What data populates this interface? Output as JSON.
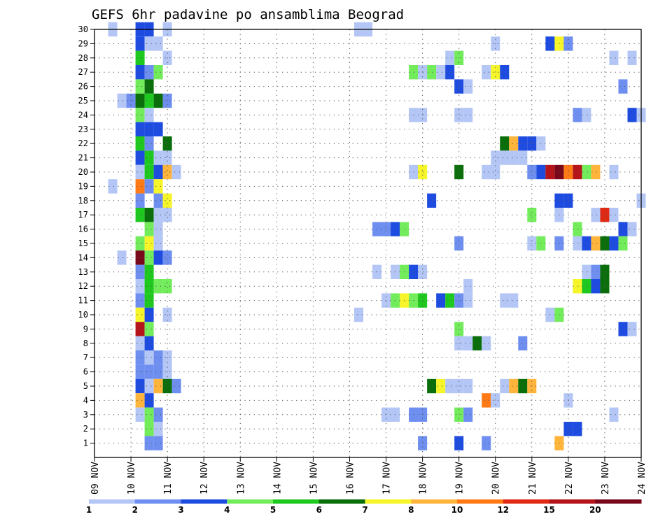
{
  "chart_data": {
    "type": "heatmap",
    "title": "GEFS 6hr padavine po ansamblima Beograd",
    "xlabel": "",
    "ylabel": "",
    "x_ticks": [
      "09 NOV",
      "10 NOV",
      "11 NOV",
      "12 NOV",
      "13 NOV",
      "14 NOV",
      "15 NOV",
      "16 NOV",
      "17 NOV",
      "18 NOV",
      "19 NOV",
      "20 NOV",
      "21 NOV",
      "22 NOV",
      "23 NOV",
      "24 NOV"
    ],
    "y_ticks": [
      "1",
      "2",
      "3",
      "4",
      "5",
      "6",
      "7",
      "8",
      "9",
      "10",
      "11",
      "12",
      "13",
      "14",
      "15",
      "16",
      "17",
      "18",
      "19",
      "20",
      "21",
      "22",
      "23",
      "24",
      "25",
      "26",
      "27",
      "28",
      "29",
      "30"
    ],
    "time_range_days": [
      0,
      15
    ],
    "member_range": [
      0,
      30
    ],
    "colorbar": {
      "bins": [
        1,
        2,
        3,
        4,
        5,
        6,
        7,
        8,
        10,
        12,
        15,
        20
      ],
      "labels": [
        "1",
        "2",
        "3",
        "4",
        "5",
        "6",
        "7",
        "8",
        "10",
        "12",
        "15",
        "20"
      ],
      "colors": [
        "#b3c6f5",
        "#6f8ff0",
        "#1f4ce0",
        "#73ec5c",
        "#1fc81f",
        "#0a6e0a",
        "#f5f52a",
        "#ffb53c",
        "#ff7a14",
        "#e02a14",
        "#b4141a",
        "#78081a"
      ]
    },
    "cells": [
      [
        30,
        10.25,
        3
      ],
      [
        30,
        10.5,
        3
      ],
      [
        30,
        9.5,
        1
      ],
      [
        30,
        11.0,
        1
      ],
      [
        30,
        16.25,
        1
      ],
      [
        30,
        16.5,
        1
      ],
      [
        29,
        10.25,
        3
      ],
      [
        29,
        10.5,
        1
      ],
      [
        29,
        10.75,
        1
      ],
      [
        29,
        20.0,
        1
      ],
      [
        29,
        21.5,
        3
      ],
      [
        29,
        21.75,
        7
      ],
      [
        29,
        22.0,
        2
      ],
      [
        28,
        10.25,
        5
      ],
      [
        28,
        11.0,
        1
      ],
      [
        28,
        18.75,
        1
      ],
      [
        28,
        19.0,
        4
      ],
      [
        28,
        23.25,
        1
      ],
      [
        28,
        23.75,
        1
      ],
      [
        27,
        10.25,
        3
      ],
      [
        27,
        10.5,
        2
      ],
      [
        27,
        10.75,
        4
      ],
      [
        27,
        17.75,
        4
      ],
      [
        27,
        18.0,
        1
      ],
      [
        27,
        18.25,
        4
      ],
      [
        27,
        18.5,
        1
      ],
      [
        27,
        18.75,
        3
      ],
      [
        27,
        19.75,
        1
      ],
      [
        27,
        20.0,
        7
      ],
      [
        27,
        20.25,
        3
      ],
      [
        26,
        10.25,
        4
      ],
      [
        26,
        10.5,
        6
      ],
      [
        26,
        19.0,
        3
      ],
      [
        26,
        19.25,
        1
      ],
      [
        26,
        23.5,
        2
      ],
      [
        25,
        9.75,
        1
      ],
      [
        25,
        10.0,
        2
      ],
      [
        25,
        10.25,
        6
      ],
      [
        25,
        10.5,
        5
      ],
      [
        25,
        10.75,
        6
      ],
      [
        25,
        11.0,
        2
      ],
      [
        24,
        10.25,
        4
      ],
      [
        24,
        10.5,
        1
      ],
      [
        24,
        17.75,
        1
      ],
      [
        24,
        18.0,
        1
      ],
      [
        24,
        19.0,
        1
      ],
      [
        24,
        19.25,
        1
      ],
      [
        24,
        22.25,
        2
      ],
      [
        24,
        22.5,
        1
      ],
      [
        24,
        23.75,
        3
      ],
      [
        24,
        24.0,
        1
      ],
      [
        23,
        10.25,
        3
      ],
      [
        23,
        10.5,
        3
      ],
      [
        23,
        10.75,
        3
      ],
      [
        22,
        10.25,
        5
      ],
      [
        22,
        10.5,
        2
      ],
      [
        22,
        11.0,
        6
      ],
      [
        22,
        20.25,
        6
      ],
      [
        22,
        20.5,
        8
      ],
      [
        22,
        20.75,
        3
      ],
      [
        22,
        21.0,
        3
      ],
      [
        22,
        21.25,
        1
      ],
      [
        21,
        10.25,
        3
      ],
      [
        21,
        10.5,
        5
      ],
      [
        21,
        10.75,
        1
      ],
      [
        21,
        11.0,
        1
      ],
      [
        21,
        20.0,
        1
      ],
      [
        21,
        20.25,
        1
      ],
      [
        21,
        20.5,
        1
      ],
      [
        21,
        20.75,
        1
      ],
      [
        20,
        10.25,
        1
      ],
      [
        20,
        10.5,
        5
      ],
      [
        20,
        10.75,
        3
      ],
      [
        20,
        11.0,
        8
      ],
      [
        20,
        11.25,
        1
      ],
      [
        20,
        17.75,
        1
      ],
      [
        20,
        18.0,
        7
      ],
      [
        20,
        19.0,
        6
      ],
      [
        20,
        19.75,
        1
      ],
      [
        20,
        20.0,
        1
      ],
      [
        20,
        21.0,
        2
      ],
      [
        20,
        21.25,
        3
      ],
      [
        20,
        21.5,
        11
      ],
      [
        20,
        21.75,
        12
      ],
      [
        20,
        22.0,
        9
      ],
      [
        20,
        22.25,
        11
      ],
      [
        20,
        22.5,
        4
      ],
      [
        20,
        22.75,
        8
      ],
      [
        20,
        23.25,
        1
      ],
      [
        19,
        9.5,
        1
      ],
      [
        19,
        10.25,
        9
      ],
      [
        19,
        10.5,
        2
      ],
      [
        19,
        10.75,
        7
      ],
      [
        18,
        10.25,
        2
      ],
      [
        18,
        10.75,
        2
      ],
      [
        18,
        11.0,
        7
      ],
      [
        18,
        18.25,
        3
      ],
      [
        18,
        21.75,
        3
      ],
      [
        18,
        22.0,
        3
      ],
      [
        18,
        24.0,
        1
      ],
      [
        17,
        10.25,
        5
      ],
      [
        17,
        10.5,
        6
      ],
      [
        17,
        10.75,
        1
      ],
      [
        17,
        11.0,
        1
      ],
      [
        17,
        21.0,
        4
      ],
      [
        17,
        21.75,
        1
      ],
      [
        17,
        22.75,
        1
      ],
      [
        17,
        23.0,
        10
      ],
      [
        17,
        23.25,
        1
      ],
      [
        16,
        10.5,
        4
      ],
      [
        16,
        10.75,
        1
      ],
      [
        16,
        16.75,
        2
      ],
      [
        16,
        17.0,
        2
      ],
      [
        16,
        17.25,
        3
      ],
      [
        16,
        17.5,
        4
      ],
      [
        16,
        22.25,
        4
      ],
      [
        16,
        23.5,
        3
      ],
      [
        16,
        23.75,
        1
      ],
      [
        15,
        10.25,
        4
      ],
      [
        15,
        10.5,
        7
      ],
      [
        15,
        10.75,
        1
      ],
      [
        15,
        19.0,
        2
      ],
      [
        15,
        21.0,
        1
      ],
      [
        15,
        21.25,
        4
      ],
      [
        15,
        21.75,
        2
      ],
      [
        15,
        22.25,
        1
      ],
      [
        15,
        22.5,
        3
      ],
      [
        15,
        22.75,
        8
      ],
      [
        15,
        23.0,
        6
      ],
      [
        15,
        23.25,
        3
      ],
      [
        15,
        23.5,
        4
      ],
      [
        14,
        9.75,
        1
      ],
      [
        14,
        10.25,
        12
      ],
      [
        14,
        10.5,
        4
      ],
      [
        14,
        10.75,
        3
      ],
      [
        14,
        11.0,
        2
      ],
      [
        13,
        10.25,
        2
      ],
      [
        13,
        10.5,
        5
      ],
      [
        13,
        16.75,
        1
      ],
      [
        13,
        17.25,
        1
      ],
      [
        13,
        17.5,
        4
      ],
      [
        13,
        17.75,
        3
      ],
      [
        13,
        18.0,
        1
      ],
      [
        13,
        22.5,
        1
      ],
      [
        13,
        22.75,
        2
      ],
      [
        13,
        23.0,
        6
      ],
      [
        12,
        10.25,
        1
      ],
      [
        12,
        10.5,
        5
      ],
      [
        12,
        10.75,
        4
      ],
      [
        12,
        11.0,
        4
      ],
      [
        12,
        19.25,
        1
      ],
      [
        12,
        22.25,
        7
      ],
      [
        12,
        22.5,
        5
      ],
      [
        12,
        22.75,
        3
      ],
      [
        12,
        23.0,
        6
      ],
      [
        11,
        10.25,
        2
      ],
      [
        11,
        10.5,
        5
      ],
      [
        11,
        17.0,
        1
      ],
      [
        11,
        17.25,
        4
      ],
      [
        11,
        17.5,
        7
      ],
      [
        11,
        17.75,
        4
      ],
      [
        11,
        18.0,
        5
      ],
      [
        11,
        18.5,
        3
      ],
      [
        11,
        18.75,
        5
      ],
      [
        11,
        19.0,
        2
      ],
      [
        11,
        19.25,
        1
      ],
      [
        11,
        20.25,
        1
      ],
      [
        11,
        20.5,
        1
      ],
      [
        10,
        10.25,
        7
      ],
      [
        10,
        10.5,
        3
      ],
      [
        10,
        11.0,
        1
      ],
      [
        10,
        16.25,
        1
      ],
      [
        10,
        21.5,
        1
      ],
      [
        10,
        21.75,
        4
      ],
      [
        9,
        10.25,
        11
      ],
      [
        9,
        10.5,
        4
      ],
      [
        9,
        19.0,
        4
      ],
      [
        9,
        23.5,
        3
      ],
      [
        9,
        23.75,
        1
      ],
      [
        8,
        10.25,
        1
      ],
      [
        8,
        10.5,
        3
      ],
      [
        8,
        19.0,
        1
      ],
      [
        8,
        19.25,
        1
      ],
      [
        8,
        19.5,
        6
      ],
      [
        8,
        19.75,
        1
      ],
      [
        8,
        20.75,
        2
      ],
      [
        7,
        10.25,
        2
      ],
      [
        7,
        10.5,
        1
      ],
      [
        7,
        10.75,
        2
      ],
      [
        7,
        11.0,
        1
      ],
      [
        6,
        10.25,
        2
      ],
      [
        6,
        10.5,
        2
      ],
      [
        6,
        10.75,
        2
      ],
      [
        6,
        11.0,
        1
      ],
      [
        5,
        10.25,
        3
      ],
      [
        5,
        10.5,
        1
      ],
      [
        5,
        10.75,
        8
      ],
      [
        5,
        11.0,
        6
      ],
      [
        5,
        11.25,
        2
      ],
      [
        5,
        18.25,
        6
      ],
      [
        5,
        18.5,
        7
      ],
      [
        5,
        18.75,
        1
      ],
      [
        5,
        19.0,
        1
      ],
      [
        5,
        19.25,
        1
      ],
      [
        5,
        20.25,
        1
      ],
      [
        5,
        20.5,
        8
      ],
      [
        5,
        20.75,
        6
      ],
      [
        5,
        21.0,
        8
      ],
      [
        4,
        10.25,
        8
      ],
      [
        4,
        10.5,
        3
      ],
      [
        4,
        19.75,
        9
      ],
      [
        4,
        20.0,
        1
      ],
      [
        4,
        22.0,
        1
      ],
      [
        3,
        10.25,
        1
      ],
      [
        3,
        10.5,
        4
      ],
      [
        3,
        10.75,
        2
      ],
      [
        3,
        17.0,
        1
      ],
      [
        3,
        17.25,
        1
      ],
      [
        3,
        17.75,
        2
      ],
      [
        3,
        18.0,
        2
      ],
      [
        3,
        19.0,
        4
      ],
      [
        3,
        19.25,
        2
      ],
      [
        3,
        23.25,
        1
      ],
      [
        2,
        10.5,
        4
      ],
      [
        2,
        10.75,
        1
      ],
      [
        2,
        22.0,
        3
      ],
      [
        2,
        22.25,
        3
      ],
      [
        1,
        10.5,
        2
      ],
      [
        1,
        10.75,
        2
      ],
      [
        1,
        18.0,
        2
      ],
      [
        1,
        19.0,
        3
      ],
      [
        1,
        19.75,
        2
      ],
      [
        1,
        21.75,
        8
      ]
    ]
  }
}
